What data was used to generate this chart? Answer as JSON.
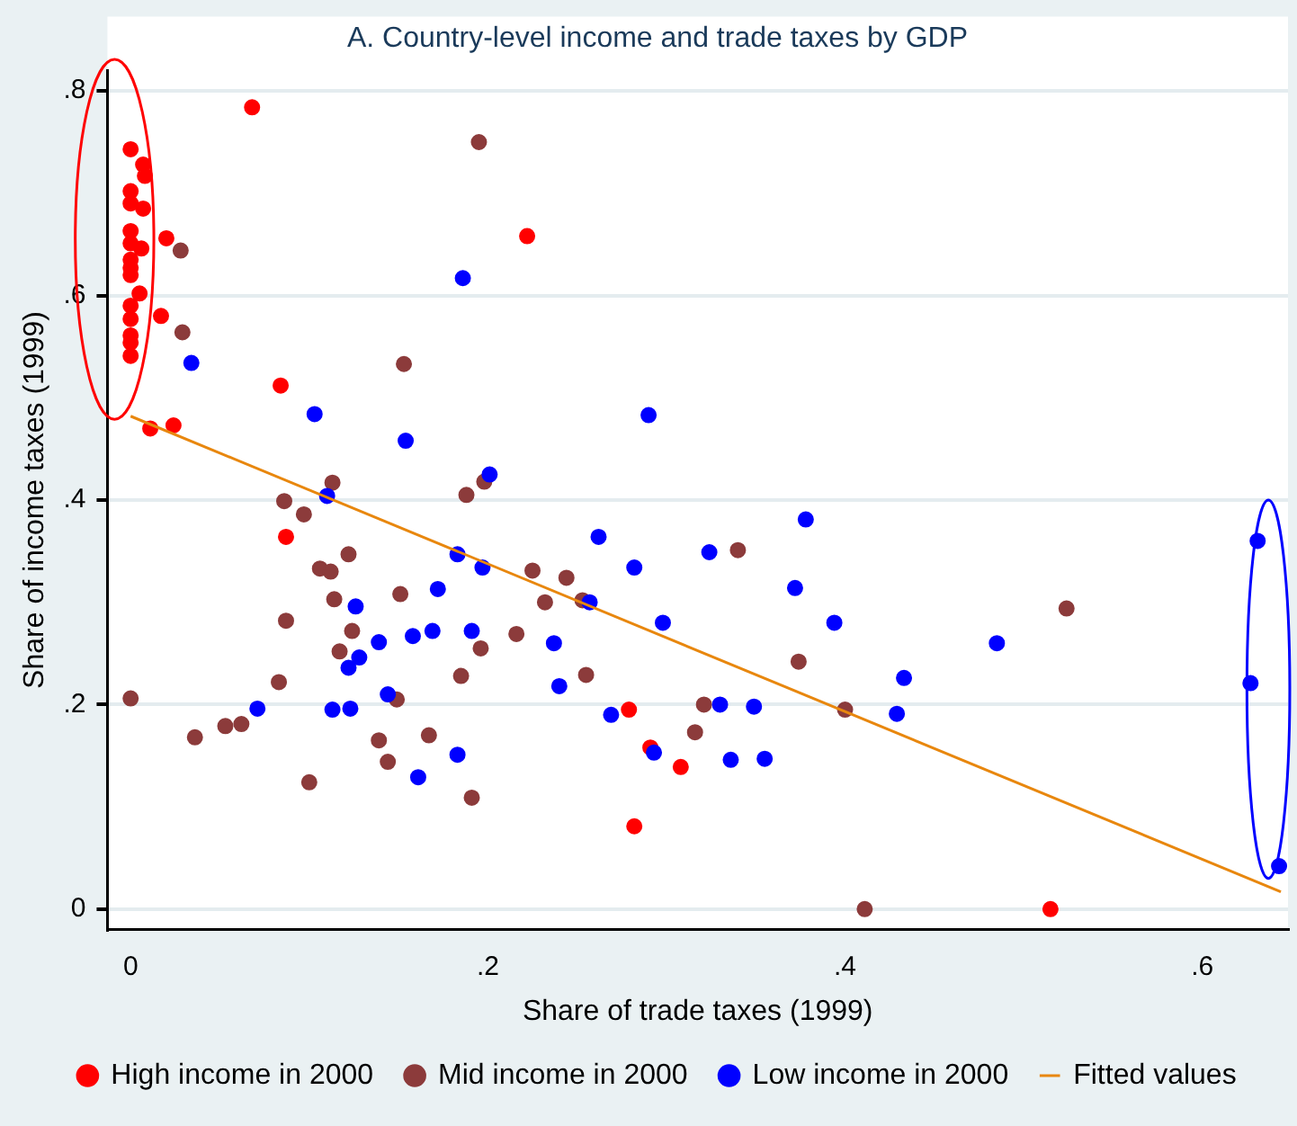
{
  "chart_data": {
    "type": "scatter",
    "title": "A. Country-level income and trade taxes by GDP",
    "xlabel": "Share of trade taxes (1999)",
    "ylabel": "Share of income taxes (1999)",
    "xlim": [
      -0.013,
      0.648
    ],
    "ylim": [
      -0.02,
      0.82
    ],
    "xticks": [
      0,
      {
        "value": 0.2,
        "label": ".2"
      },
      {
        "value": 0.4,
        "label": ".4"
      },
      {
        "value": 0.6,
        "label": ".6"
      }
    ],
    "yticks": [
      0,
      {
        "value": 0.2,
        "label": ".2"
      },
      {
        "value": 0.4,
        "label": ".4"
      },
      {
        "value": 0.6,
        "label": ".6"
      },
      {
        "value": 0.8,
        "label": ".8"
      }
    ],
    "grid": "y",
    "legend": "bottom",
    "marker": "circle",
    "series": [
      {
        "name": "High income in 2000",
        "color": "#ff0000",
        "x": [
          0.068,
          0,
          0.007,
          0.008,
          0,
          0,
          0.007,
          0,
          0,
          0.006,
          0.02,
          0,
          0,
          0,
          0.005,
          0,
          0,
          0.017,
          0,
          0,
          0,
          0.084,
          0.011,
          0.024,
          0.222,
          0.087,
          0.279,
          0.291,
          0.308,
          0.282,
          0.515
        ],
        "values": [
          0.784,
          0.743,
          0.728,
          0.717,
          0.702,
          0.69,
          0.685,
          0.663,
          0.651,
          0.646,
          0.656,
          0.635,
          0.627,
          0.62,
          0.602,
          0.59,
          0.577,
          0.58,
          0.561,
          0.554,
          0.541,
          0.512,
          0.47,
          0.473,
          0.658,
          0.364,
          0.195,
          0.158,
          0.139,
          0.081,
          0
        ]
      },
      {
        "name": "Mid income in 2000",
        "color": "#8c3b3b",
        "x": [
          0.195,
          0.028,
          0.029,
          0.153,
          0.113,
          0.086,
          0.188,
          0.198,
          0.097,
          0.122,
          0.106,
          0.112,
          0.114,
          0.151,
          0.087,
          0.124,
          0.117,
          0.196,
          0.216,
          0.225,
          0.083,
          0.185,
          0,
          0.149,
          0.036,
          0.053,
          0.062,
          0.139,
          0.167,
          0.144,
          0.1,
          0.191,
          0.244,
          0.232,
          0.253,
          0.34,
          0.524,
          0.374,
          0.255,
          0.321,
          0.4,
          0.316,
          0.411
        ],
        "values": [
          0.75,
          0.644,
          0.564,
          0.533,
          0.417,
          0.399,
          0.405,
          0.418,
          0.386,
          0.347,
          0.333,
          0.33,
          0.303,
          0.308,
          0.282,
          0.272,
          0.252,
          0.255,
          0.269,
          0.331,
          0.222,
          0.228,
          0.206,
          0.205,
          0.168,
          0.179,
          0.181,
          0.165,
          0.17,
          0.144,
          0.124,
          0.109,
          0.324,
          0.3,
          0.302,
          0.351,
          0.294,
          0.242,
          0.229,
          0.2,
          0.195,
          0.173,
          0
        ]
      },
      {
        "name": "Low income in 2000",
        "color": "#0000ff",
        "x": [
          0.186,
          0.034,
          0.103,
          0.154,
          0.201,
          0.11,
          0.29,
          0.183,
          0.197,
          0.172,
          0.126,
          0.139,
          0.158,
          0.169,
          0.191,
          0.128,
          0.122,
          0.144,
          0.071,
          0.113,
          0.123,
          0.183,
          0.161,
          0.378,
          0.262,
          0.324,
          0.282,
          0.257,
          0.372,
          0.298,
          0.394,
          0.485,
          0.237,
          0.433,
          0.24,
          0.269,
          0.33,
          0.349,
          0.429,
          0.293,
          0.336,
          0.355,
          0.631,
          0.627,
          0.643
        ],
        "values": [
          0.617,
          0.534,
          0.484,
          0.458,
          0.425,
          0.404,
          0.483,
          0.347,
          0.334,
          0.313,
          0.296,
          0.261,
          0.267,
          0.272,
          0.272,
          0.246,
          0.236,
          0.21,
          0.196,
          0.195,
          0.196,
          0.151,
          0.129,
          0.381,
          0.364,
          0.349,
          0.334,
          0.3,
          0.314,
          0.28,
          0.28,
          0.26,
          0.26,
          0.226,
          0.218,
          0.19,
          0.2,
          0.198,
          0.191,
          0.153,
          0.146,
          0.147,
          0.36,
          0.221,
          0.042
        ]
      },
      {
        "name": "Fitted values",
        "type": "line",
        "marker": "none",
        "color": "#e8870e",
        "x": [
          0,
          0.644
        ],
        "values": [
          0.482,
          0.017
        ]
      }
    ]
  }
}
